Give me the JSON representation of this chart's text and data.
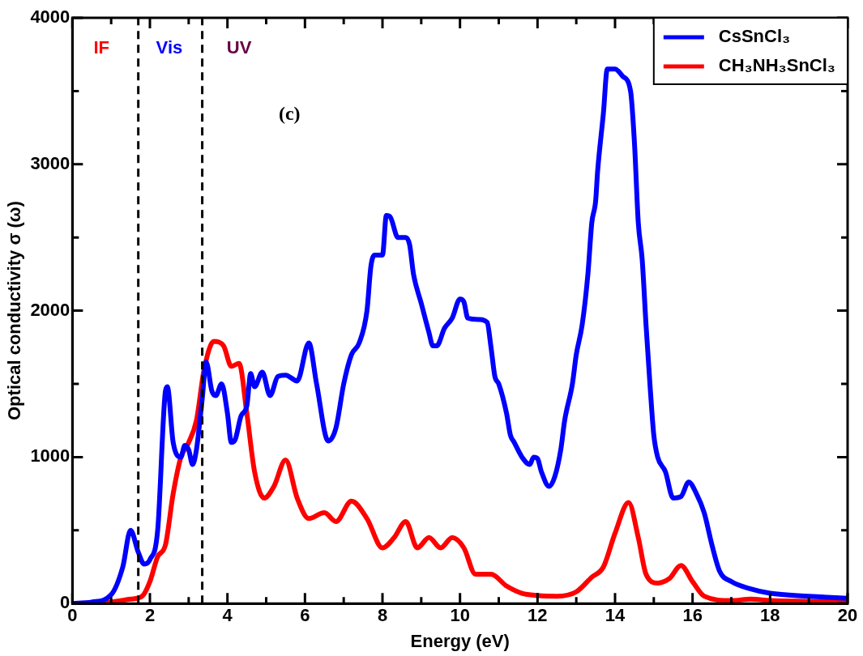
{
  "chart_data": {
    "type": "line",
    "xlabel": "Energy (eV)",
    "ylabel": "Optical conductivity σ (ω)",
    "xlim": [
      0,
      20
    ],
    "ylim": [
      0,
      4000
    ],
    "xticks": [
      0,
      {
        "value": 1,
        "label": null
      },
      2,
      {
        "value": 3,
        "label": null
      },
      4,
      {
        "value": 5,
        "label": null
      },
      6,
      {
        "value": 7,
        "label": null
      },
      8,
      {
        "value": 9,
        "label": null
      },
      10,
      {
        "value": 11,
        "label": null
      },
      12,
      {
        "value": 13,
        "label": null
      },
      14,
      {
        "value": 15,
        "label": null
      },
      16,
      {
        "value": 17,
        "label": null
      },
      18,
      {
        "value": 19,
        "label": null
      },
      20
    ],
    "yticks": [
      0,
      {
        "value": 500,
        "label": null
      },
      1000,
      {
        "value": 1500,
        "label": null
      },
      2000,
      {
        "value": 2500,
        "label": null
      },
      3000,
      {
        "value": 3500,
        "label": null
      },
      4000
    ],
    "grid": false,
    "legend": "top right",
    "marker": "none",
    "line_style": "solid",
    "series": [
      {
        "name": "CsSnCl₃",
        "color": "#0000ff",
        "x": [
          0,
          0.5,
          1.0,
          1.3,
          1.5,
          1.7,
          1.85,
          2.0,
          2.2,
          2.4,
          2.45,
          2.6,
          2.8,
          2.9,
          3.0,
          3.1,
          3.2,
          3.35,
          3.45,
          3.6,
          3.7,
          3.85,
          4.0,
          4.1,
          4.2,
          4.35,
          4.5,
          4.6,
          4.7,
          4.9,
          5.1,
          5.3,
          5.5,
          5.8,
          6.1,
          6.3,
          6.6,
          6.8,
          7.0,
          7.2,
          7.4,
          7.6,
          7.7,
          7.8,
          8.0,
          8.1,
          8.2,
          8.4,
          8.6,
          8.7,
          8.8,
          9.0,
          9.2,
          9.3,
          9.4,
          9.6,
          9.8,
          10.0,
          10.1,
          10.2,
          10.5,
          10.7,
          10.8,
          10.9,
          11.0,
          11.2,
          11.3,
          11.4,
          11.6,
          11.8,
          11.9,
          12.0,
          12.1,
          12.3,
          12.45,
          12.6,
          12.7,
          12.9,
          13.0,
          13.15,
          13.3,
          13.4,
          13.5,
          13.55,
          13.7,
          13.8,
          14.0,
          14.2,
          14.4,
          14.5,
          14.6,
          14.7,
          14.8,
          14.9,
          15.0,
          15.1,
          15.3,
          15.5,
          15.7,
          15.9,
          16.1,
          16.3,
          16.5,
          16.7,
          17.0,
          17.5,
          18.0,
          19.0,
          20.0
        ],
        "values": [
          0,
          10,
          60,
          250,
          500,
          350,
          270,
          300,
          500,
          1450,
          1480,
          1100,
          1000,
          1080,
          1050,
          950,
          1050,
          1400,
          1650,
          1450,
          1420,
          1500,
          1300,
          1100,
          1120,
          1280,
          1350,
          1570,
          1480,
          1580,
          1420,
          1550,
          1560,
          1520,
          1780,
          1500,
          1110,
          1200,
          1500,
          1700,
          1780,
          2000,
          2300,
          2380,
          2380,
          2650,
          2640,
          2500,
          2500,
          2450,
          2250,
          2050,
          1850,
          1760,
          1760,
          1880,
          1950,
          2080,
          2060,
          1950,
          1940,
          1920,
          1750,
          1550,
          1500,
          1300,
          1150,
          1100,
          1000,
          950,
          1000,
          990,
          900,
          800,
          870,
          1050,
          1250,
          1500,
          1700,
          1900,
          2250,
          2600,
          2750,
          2950,
          3350,
          3650,
          3650,
          3600,
          3500,
          3150,
          2600,
          2350,
          1900,
          1500,
          1150,
          1000,
          900,
          720,
          730,
          830,
          750,
          620,
          400,
          220,
          150,
          100,
          70,
          50,
          35
        ]
      },
      {
        "name": "CH₃NH₃SnCl₃",
        "color": "#ff0000",
        "x": [
          0,
          1.0,
          1.5,
          1.8,
          2.0,
          2.2,
          2.4,
          2.6,
          2.8,
          3.0,
          3.2,
          3.4,
          3.65,
          3.9,
          4.1,
          4.3,
          4.5,
          4.7,
          4.95,
          5.2,
          5.5,
          5.8,
          6.1,
          6.5,
          6.8,
          7.2,
          7.6,
          8.0,
          8.3,
          8.6,
          8.9,
          9.2,
          9.5,
          9.8,
          10.1,
          10.4,
          10.8,
          11.2,
          11.6,
          12.0,
          12.5,
          13.0,
          13.4,
          13.7,
          14.0,
          14.35,
          14.6,
          14.8,
          15.1,
          15.4,
          15.7,
          16.0,
          16.3,
          17.0,
          17.5,
          18.0,
          19.0,
          20.0
        ],
        "values": [
          0,
          10,
          30,
          50,
          150,
          320,
          400,
          750,
          1000,
          1100,
          1250,
          1600,
          1790,
          1760,
          1620,
          1640,
          1300,
          900,
          720,
          800,
          980,
          720,
          580,
          620,
          560,
          700,
          580,
          380,
          450,
          560,
          380,
          450,
          380,
          450,
          380,
          200,
          200,
          120,
          70,
          55,
          50,
          80,
          180,
          250,
          480,
          690,
          450,
          200,
          140,
          170,
          260,
          150,
          50,
          20,
          30,
          20,
          15,
          10
        ]
      }
    ],
    "ref_lines": [
      {
        "axis": "x",
        "value": 1.7,
        "color": "#000000",
        "line_style": "dashed"
      },
      {
        "axis": "x",
        "value": 3.35,
        "color": "#000000",
        "line_style": "dashed"
      }
    ],
    "annotations": [
      "IF",
      "Vis",
      "UV",
      "(c)"
    ]
  }
}
